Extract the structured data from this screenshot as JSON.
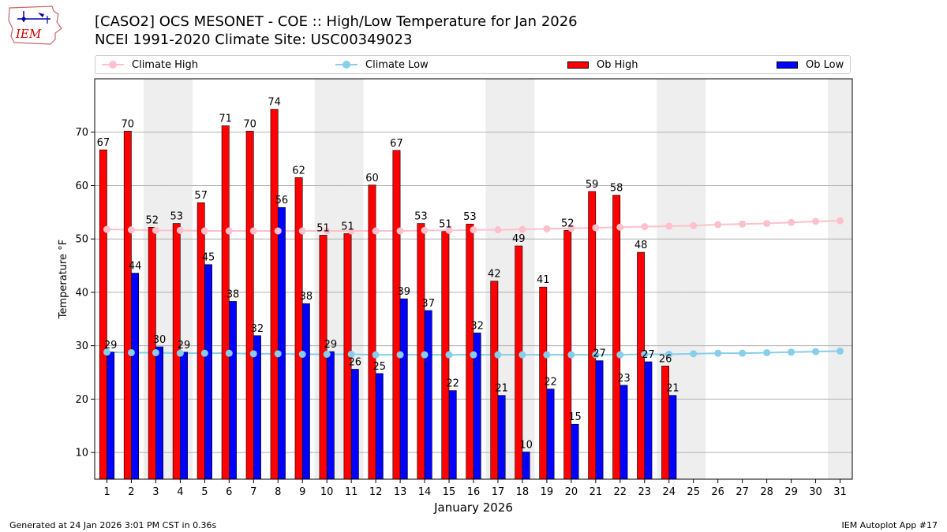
{
  "header": {
    "title_line1": "[CASO2] OCS MESONET - COE :: High/Low Temperature for Jan 2026",
    "title_line2": "NCEI 1991-2020 Climate Site: USC00349023",
    "logo_text": "IEM"
  },
  "legend": {
    "placement": "top",
    "climate_high": "Climate High",
    "climate_low": "Climate Low",
    "ob_high": "Ob High",
    "ob_low": "Ob Low"
  },
  "colors": {
    "ob_high": "#ff0000",
    "ob_low": "#0000ff",
    "climate_high": "#ffc0cb",
    "climate_low": "#87ceeb",
    "weekend_band": "#eeeeee",
    "grid": "#b0b0b0"
  },
  "chart_data": {
    "type": "bar",
    "title": "[CASO2] OCS MESONET - COE :: High/Low Temperature for Jan 2026",
    "subtitle": "NCEI 1991-2020 Climate Site: USC00349023",
    "xlabel": "January 2026",
    "ylabel": "Temperature °F",
    "ylim": [
      5,
      80
    ],
    "yticks": [
      10,
      20,
      30,
      40,
      50,
      60,
      70
    ],
    "grid": "horizontal",
    "legend_placement": "top",
    "categories": [
      "1",
      "2",
      "3",
      "4",
      "5",
      "6",
      "7",
      "8",
      "9",
      "10",
      "11",
      "12",
      "13",
      "14",
      "15",
      "16",
      "17",
      "18",
      "19",
      "20",
      "21",
      "22",
      "23",
      "24",
      "25",
      "26",
      "27",
      "28",
      "29",
      "30",
      "31"
    ],
    "shaded_days": [
      3,
      4,
      10,
      11,
      17,
      18,
      24,
      25,
      31
    ],
    "series": [
      {
        "name": "Ob High",
        "kind": "bar",
        "values": [
          66.7,
          70.2,
          52.2,
          52.9,
          56.8,
          71.2,
          70.2,
          74.3,
          61.5,
          50.7,
          51.0,
          60.1,
          66.6,
          52.9,
          51.4,
          52.8,
          42.1,
          48.7,
          41.0,
          51.6,
          58.9,
          58.2,
          47.5,
          26.2,
          null,
          null,
          null,
          null,
          null,
          null,
          null
        ],
        "labels": [
          "67",
          "70",
          "52",
          "53",
          "57",
          "71",
          "70",
          "74",
          "62",
          "51",
          "51",
          "60",
          "67",
          "53",
          "51",
          "53",
          "42",
          "49",
          "41",
          "52",
          "59",
          "58",
          "48",
          "26",
          "",
          "",
          "",
          "",
          "",
          "",
          ""
        ]
      },
      {
        "name": "Ob Low",
        "kind": "bar",
        "values": [
          28.8,
          43.6,
          29.8,
          28.8,
          45.2,
          38.3,
          31.9,
          55.9,
          37.9,
          28.9,
          25.6,
          24.8,
          38.8,
          36.6,
          21.6,
          32.4,
          20.7,
          10.1,
          21.9,
          15.3,
          27.2,
          22.6,
          27.0,
          20.7,
          null,
          null,
          null,
          null,
          null,
          null,
          null
        ],
        "labels": [
          "29",
          "44",
          "30",
          "29",
          "45",
          "38",
          "32",
          "56",
          "38",
          "29",
          "26",
          "25",
          "39",
          "37",
          "22",
          "32",
          "21",
          "10",
          "22",
          "15",
          "27",
          "23",
          "27",
          "21",
          "",
          "",
          "",
          "",
          "",
          "",
          ""
        ]
      },
      {
        "name": "Climate High",
        "kind": "line",
        "values": [
          51.8,
          51.7,
          51.6,
          51.6,
          51.5,
          51.5,
          51.5,
          51.5,
          51.5,
          51.5,
          51.5,
          51.5,
          51.5,
          51.6,
          51.6,
          51.7,
          51.7,
          51.8,
          51.9,
          52.0,
          52.1,
          52.2,
          52.3,
          52.4,
          52.5,
          52.7,
          52.8,
          52.9,
          53.1,
          53.3,
          53.4
        ]
      },
      {
        "name": "Climate Low",
        "kind": "line",
        "values": [
          28.8,
          28.7,
          28.7,
          28.6,
          28.6,
          28.6,
          28.5,
          28.5,
          28.4,
          28.4,
          28.4,
          28.3,
          28.3,
          28.3,
          28.3,
          28.3,
          28.3,
          28.3,
          28.3,
          28.3,
          28.3,
          28.3,
          28.4,
          28.4,
          28.5,
          28.6,
          28.6,
          28.7,
          28.8,
          28.9,
          29.0
        ]
      }
    ]
  },
  "footer": {
    "generated": "Generated at 24 Jan 2026 3:01 PM CST in 0.36s",
    "app": "IEM Autoplot App #17"
  }
}
